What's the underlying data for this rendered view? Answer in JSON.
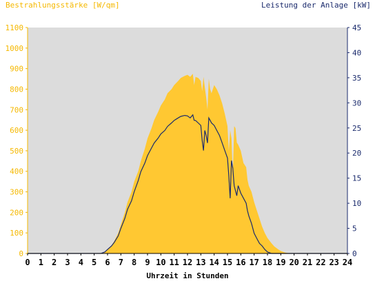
{
  "chart_data": {
    "type": "area",
    "left_axis_title": "Bestrahlungsstärke [W/qm]",
    "right_axis_title": "Leistung der Anlage [kW]",
    "xlabel": "Uhrzeit in Stunden",
    "x_ticks": [
      "0",
      "1",
      "2",
      "3",
      "4",
      "5",
      "6",
      "7",
      "8",
      "9",
      "10",
      "11",
      "12",
      "13",
      "14",
      "15",
      "16",
      "17",
      "18",
      "19",
      "20",
      "21",
      "22",
      "23",
      "24"
    ],
    "left_ticks": [
      "0",
      "100",
      "200",
      "300",
      "400",
      "500",
      "600",
      "700",
      "800",
      "900",
      "1000",
      "1100"
    ],
    "right_ticks": [
      "0",
      "5",
      "10",
      "15",
      "20",
      "25",
      "30",
      "35",
      "40",
      "45"
    ],
    "xlim": [
      0,
      24
    ],
    "ylim_left": [
      0,
      1100
    ],
    "ylim_right": [
      0,
      45
    ],
    "grid": false,
    "colors": {
      "irradiance": "#ffc832",
      "power": "#1a2a6c",
      "left_axis": "#f5b800",
      "right_axis": "#1a2a6c",
      "plot_bg": "#dcdcdc"
    },
    "series": [
      {
        "name": "Bestrahlungsstärke [W/qm]",
        "axis": "left",
        "x": [
          0,
          5.5,
          5.8,
          6.0,
          6.3,
          6.5,
          6.8,
          7.0,
          7.3,
          7.5,
          7.8,
          8.0,
          8.3,
          8.5,
          8.8,
          9.0,
          9.3,
          9.5,
          9.8,
          10.0,
          10.3,
          10.5,
          10.8,
          11.0,
          11.3,
          11.5,
          11.8,
          12.0,
          12.2,
          12.4,
          12.5,
          12.6,
          12.8,
          13.0,
          13.1,
          13.2,
          13.3,
          13.4,
          13.5,
          13.6,
          13.7,
          13.8,
          14.0,
          14.2,
          14.4,
          14.6,
          14.8,
          15.0,
          15.1,
          15.2,
          15.3,
          15.4,
          15.5,
          15.6,
          15.7,
          15.8,
          16.0,
          16.2,
          16.4,
          16.5,
          16.6,
          16.8,
          17.0,
          17.2,
          17.4,
          17.6,
          17.8,
          18.0,
          18.3,
          18.5,
          18.8,
          19.0,
          19.3,
          19.5,
          19.8,
          20,
          24
        ],
        "values": [
          0,
          0,
          5,
          20,
          40,
          60,
          100,
          140,
          200,
          250,
          300,
          350,
          400,
          450,
          510,
          560,
          610,
          650,
          690,
          720,
          750,
          780,
          800,
          820,
          840,
          855,
          865,
          870,
          860,
          875,
          820,
          860,
          855,
          840,
          790,
          860,
          810,
          760,
          700,
          850,
          800,
          780,
          820,
          800,
          770,
          730,
          680,
          620,
          500,
          600,
          560,
          380,
          620,
          610,
          540,
          530,
          500,
          440,
          420,
          360,
          330,
          300,
          250,
          210,
          170,
          130,
          100,
          75,
          50,
          35,
          20,
          12,
          5,
          2,
          0,
          0,
          0
        ]
      },
      {
        "name": "Leistung der Anlage [kW]",
        "axis": "right",
        "x": [
          0,
          5.5,
          5.8,
          6.0,
          6.3,
          6.5,
          6.8,
          7.0,
          7.3,
          7.5,
          7.8,
          8.0,
          8.3,
          8.5,
          8.8,
          9.0,
          9.3,
          9.5,
          9.8,
          10.0,
          10.3,
          10.5,
          10.8,
          11.0,
          11.3,
          11.5,
          11.8,
          12.0,
          12.2,
          12.4,
          12.5,
          12.6,
          12.8,
          13.0,
          13.1,
          13.2,
          13.3,
          13.4,
          13.5,
          13.6,
          13.7,
          13.8,
          14.0,
          14.2,
          14.4,
          14.6,
          14.8,
          15.0,
          15.1,
          15.2,
          15.3,
          15.4,
          15.5,
          15.6,
          15.7,
          15.8,
          16.0,
          16.2,
          16.4,
          16.5,
          16.6,
          16.8,
          17.0,
          17.2,
          17.4,
          17.6,
          17.8,
          18.0,
          18.3,
          18.5,
          18.8,
          19.0,
          19.3,
          19.5,
          19.8,
          20,
          24
        ],
        "values": [
          0,
          0,
          0.3,
          0.8,
          1.5,
          2.2,
          3.5,
          5.0,
          7.0,
          8.8,
          10.5,
          12.3,
          14.5,
          16.3,
          18.0,
          19.5,
          21.0,
          22.0,
          23.0,
          23.8,
          24.5,
          25.3,
          26.0,
          26.5,
          27.0,
          27.3,
          27.5,
          27.4,
          27.0,
          27.6,
          26.5,
          26.5,
          26.0,
          25.5,
          22.5,
          20.5,
          24.5,
          23.5,
          22.0,
          27.0,
          26.5,
          26.0,
          25.5,
          24.5,
          23.5,
          22.0,
          20.5,
          19.0,
          15.5,
          11.0,
          18.5,
          17.0,
          13.5,
          12.5,
          11.5,
          13.5,
          12.0,
          11.0,
          10.0,
          8.5,
          7.5,
          6.0,
          4.0,
          3.0,
          2.0,
          1.5,
          0.8,
          0.3,
          0,
          0,
          0,
          0,
          0,
          0,
          0,
          0,
          0
        ]
      }
    ]
  }
}
